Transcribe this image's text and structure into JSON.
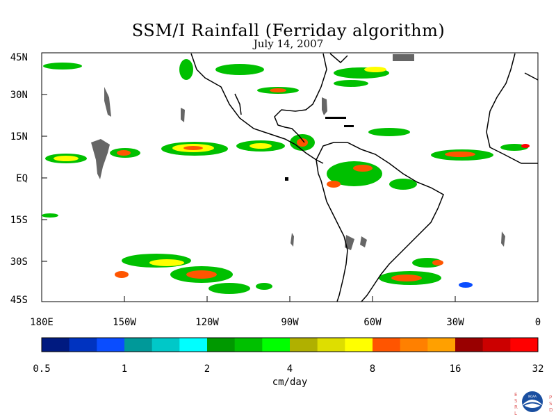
{
  "map": {
    "title": "SSM/I Rainfall (Ferriday algorithm)",
    "date": "July 14, 2007",
    "lat_labels": [
      "45N",
      "30N",
      "15N",
      "EQ",
      "15S",
      "30S",
      "45S"
    ],
    "lon_labels": [
      "180E",
      "150W",
      "120W",
      "90W",
      "60W",
      "30W",
      "0"
    ],
    "lat_values": [
      45,
      30,
      15,
      0,
      -15,
      -30,
      -45
    ],
    "lon_values": [
      -180,
      -150,
      -120,
      -90,
      -60,
      -30,
      0
    ]
  },
  "colorbar": {
    "unit": "cm/day",
    "tick_labels": [
      "0.5",
      "1",
      "2",
      "4",
      "8",
      "16",
      "32"
    ],
    "colors": [
      "#001a80",
      "#0033c0",
      "#0a4dff",
      "#009999",
      "#00c8c8",
      "#00ffff",
      "#009900",
      "#00c000",
      "#00ff00",
      "#b0b000",
      "#dede00",
      "#ffff00",
      "#ff5500",
      "#ff8000",
      "#ffa000",
      "#990000",
      "#cc0000",
      "#ff0000"
    ]
  },
  "colors": {
    "land_mask": "#666666",
    "coast": "#000000"
  },
  "logo": {
    "left_text": "ESRL",
    "right_text": "PSD",
    "center_text": "NOAA"
  }
}
